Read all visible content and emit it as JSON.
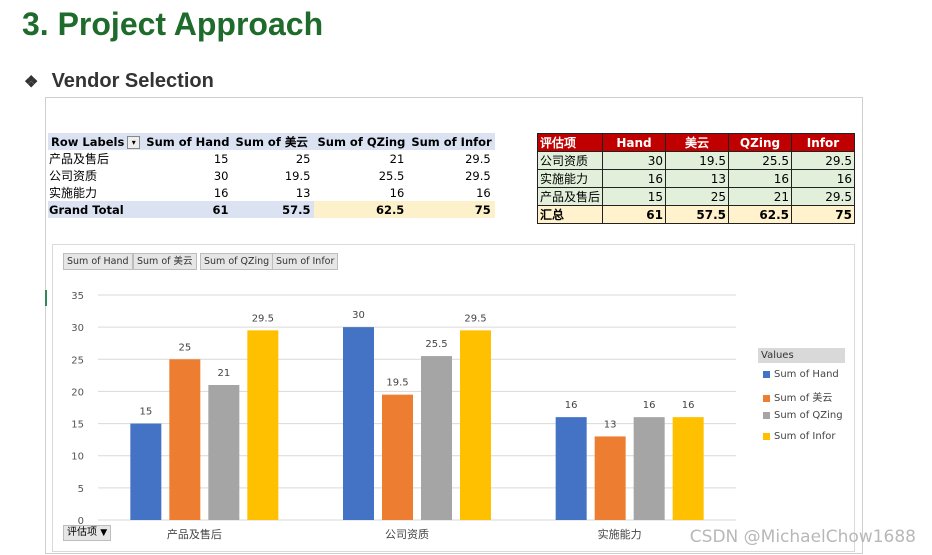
{
  "header": {
    "title": "3. Project Approach",
    "bullet": "❖",
    "subtitle": "Vendor Selection"
  },
  "pivot": {
    "headers": [
      "Row Labels",
      "Sum of Hand",
      "Sum of 美云",
      "Sum of QZing",
      "Sum of Infor"
    ],
    "rows": [
      {
        "label": "产品及售后",
        "values": [
          "15",
          "25",
          "21",
          "29.5"
        ]
      },
      {
        "label": "公司资质",
        "values": [
          "30",
          "19.5",
          "25.5",
          "29.5"
        ]
      },
      {
        "label": "实施能力",
        "values": [
          "16",
          "13",
          "16",
          "16"
        ]
      }
    ],
    "total": {
      "label": "Grand Total",
      "values": [
        "61",
        "57.5",
        "62.5",
        "75"
      ]
    }
  },
  "eval_table": {
    "headers": [
      "评估项",
      "Hand",
      "美云",
      "QZing",
      "Infor"
    ],
    "rows": [
      {
        "label": "公司资质",
        "values": [
          "30",
          "19.5",
          "25.5",
          "29.5"
        ]
      },
      {
        "label": "实施能力",
        "values": [
          "16",
          "13",
          "16",
          "16"
        ]
      },
      {
        "label": "产品及售后",
        "values": [
          "15",
          "25",
          "21",
          "29.5"
        ]
      }
    ],
    "total": {
      "label": "汇总",
      "values": [
        "61",
        "57.5",
        "62.5",
        "75"
      ]
    }
  },
  "chart_buttons": [
    "Sum of Hand",
    "Sum of 美云",
    "Sum of QZing",
    "Sum of Infor"
  ],
  "legend_title": "Values",
  "axis_filter_label": "评估项",
  "watermark": "CSDN @MichaelChow1688",
  "chart_data": {
    "type": "bar",
    "categories": [
      "产品及售后",
      "公司资质",
      "实施能力"
    ],
    "series": [
      {
        "name": "Sum of Hand",
        "color": "#4472c4",
        "values": [
          15,
          30,
          16
        ]
      },
      {
        "name": "Sum of 美云",
        "color": "#ed7d31",
        "values": [
          25,
          19.5,
          13
        ]
      },
      {
        "name": "Sum of QZing",
        "color": "#a5a5a5",
        "values": [
          21,
          25.5,
          16
        ]
      },
      {
        "name": "Sum of Infor",
        "color": "#ffc000",
        "values": [
          29.5,
          29.5,
          16
        ]
      }
    ],
    "ylim": [
      0,
      35
    ],
    "yticks": [
      0,
      5,
      10,
      15,
      20,
      25,
      30,
      35
    ],
    "grid": true,
    "legend": "right"
  }
}
